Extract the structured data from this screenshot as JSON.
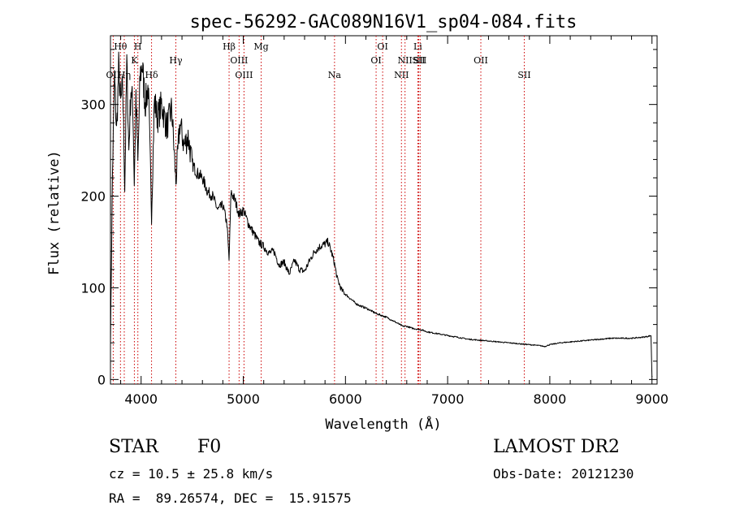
{
  "chart_data": {
    "type": "line",
    "title": "spec-56292-GAC089N16V1_sp04-084.fits",
    "xlabel": "Wavelength (Å)",
    "ylabel": "Flux (relative)",
    "xlim": [
      3700,
      9050
    ],
    "ylim": [
      -5,
      375
    ],
    "xticks": [
      4000,
      5000,
      6000,
      7000,
      8000,
      9000
    ],
    "yticks": [
      0,
      100,
      200,
      300
    ],
    "xtick_labels": [
      "4000",
      "5000",
      "6000",
      "7000",
      "8000",
      "9000"
    ],
    "ytick_labels": [
      "0",
      "100",
      "200",
      "300"
    ],
    "grid": false,
    "line_color": "#000000",
    "marker_color": "#cc0000",
    "spectrum": {
      "x": [
        3700,
        3720,
        3740,
        3760,
        3780,
        3800,
        3820,
        3840,
        3860,
        3880,
        3900,
        3920,
        3933,
        3950,
        3968,
        3990,
        4010,
        4040,
        4070,
        4102,
        4130,
        4160,
        4200,
        4250,
        4300,
        4340,
        4380,
        4420,
        4460,
        4500,
        4550,
        4600,
        4650,
        4700,
        4750,
        4800,
        4840,
        4861,
        4880,
        4920,
        4960,
        5000,
        5050,
        5100,
        5150,
        5200,
        5250,
        5300,
        5350,
        5400,
        5450,
        5500,
        5550,
        5600,
        5650,
        5700,
        5750,
        5800,
        5830,
        5860,
        5890,
        5920,
        5960,
        6000,
        6050,
        6100,
        6150,
        6200,
        6250,
        6300,
        6350,
        6400,
        6450,
        6500,
        6530,
        6563,
        6600,
        6650,
        6700,
        6750,
        6800,
        6900,
        7000,
        7100,
        7200,
        7300,
        7400,
        7500,
        7600,
        7700,
        7800,
        7900,
        7950,
        8000,
        8100,
        8200,
        8300,
        8400,
        8500,
        8600,
        8700,
        8800,
        8900,
        8960,
        8990,
        9000
      ],
      "y": [
        40,
        225,
        330,
        270,
        340,
        300,
        320,
        210,
        345,
        250,
        318,
        295,
        215,
        312,
        235,
        330,
        345,
        300,
        320,
        180,
        305,
        285,
        300,
        275,
        295,
        215,
        280,
        255,
        265,
        235,
        225,
        220,
        205,
        200,
        185,
        190,
        170,
        130,
        205,
        195,
        180,
        185,
        170,
        160,
        150,
        145,
        138,
        140,
        125,
        128,
        115,
        130,
        120,
        118,
        130,
        140,
        145,
        148,
        150,
        140,
        128,
        110,
        98,
        93,
        88,
        83,
        80,
        78,
        75,
        72,
        70,
        68,
        65,
        62,
        60,
        58,
        58,
        56,
        55,
        54,
        52,
        50,
        48,
        46,
        44,
        43,
        42,
        41,
        40,
        39,
        38,
        37,
        36,
        38,
        40,
        41,
        42,
        43,
        44,
        45,
        45,
        45,
        46,
        47,
        48,
        3
      ]
    },
    "lines": [
      {
        "name": "Hθ",
        "x": 3798,
        "row": 1
      },
      {
        "name": "OII",
        "x": 3727,
        "row": 3
      },
      {
        "name": "Hη",
        "x": 3835,
        "row": 3
      },
      {
        "name": "K",
        "x": 3934,
        "row": 2
      },
      {
        "name": "H",
        "x": 3968,
        "row": 1
      },
      {
        "name": "Hδ",
        "x": 4102,
        "row": 3
      },
      {
        "name": "Hγ",
        "x": 4340,
        "row": 2
      },
      {
        "name": "Hβ",
        "x": 4861,
        "row": 1
      },
      {
        "name": "OIII",
        "x": 4959,
        "row": 2
      },
      {
        "name": "OIII",
        "x": 5007,
        "row": 3
      },
      {
        "name": "Mg",
        "x": 5175,
        "row": 1
      },
      {
        "name": "Na",
        "x": 5893,
        "row": 3
      },
      {
        "name": "OI",
        "x": 6300,
        "row": 2
      },
      {
        "name": "OI",
        "x": 6364,
        "row": 1
      },
      {
        "name": "NII",
        "x": 6548,
        "row": 3
      },
      {
        "name": "NII",
        "x": 6583,
        "row": 2
      },
      {
        "name": "Li",
        "x": 6708,
        "row": 1
      },
      {
        "name": "SII",
        "x": 6717,
        "row": 2
      },
      {
        "name": "SII",
        "x": 6731,
        "row": 2
      },
      {
        "name": "OII",
        "x": 7325,
        "row": 2
      },
      {
        "name": "SII",
        "x": 7750,
        "row": 3
      }
    ]
  },
  "info": {
    "class_label": "STAR",
    "subclass": "F0",
    "survey": "LAMOST DR2",
    "cz": "cz = 10.5 ± 25.8 km/s",
    "obs_date": "Obs-Date: 20121230",
    "coords": "RA =  89.26574, DEC =  15.91575"
  }
}
